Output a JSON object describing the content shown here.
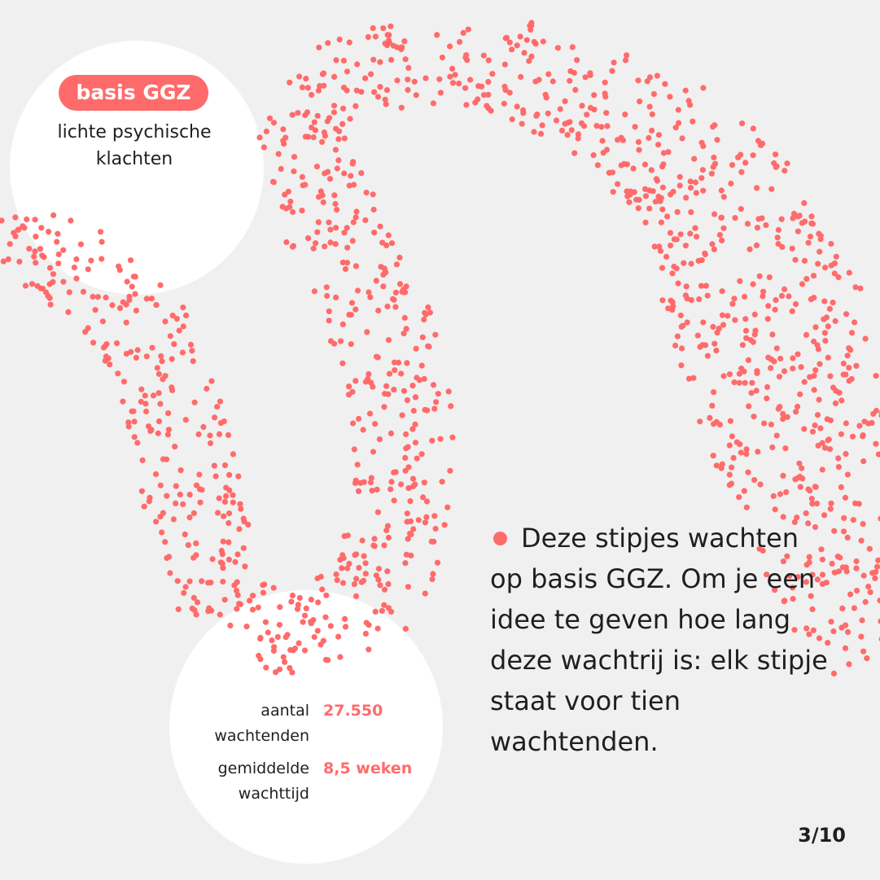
{
  "colors": {
    "accent": "#ff6b6b",
    "background": "#f0f0f0"
  },
  "category": {
    "badge": "basis GGZ",
    "subtitle": "lichte psychische klachten"
  },
  "stats": [
    {
      "label": "aantal wachtenden",
      "value": "27.550"
    },
    {
      "label": "gemiddelde wachttijd",
      "value": "8,5 weken"
    }
  ],
  "body_text": "Deze stipjes wachten op basis GGZ. Om je een idee te geven hoe lang deze wachtrij is: elk stipje staat voor tien wachtenden.",
  "page_indicator": "3/10"
}
